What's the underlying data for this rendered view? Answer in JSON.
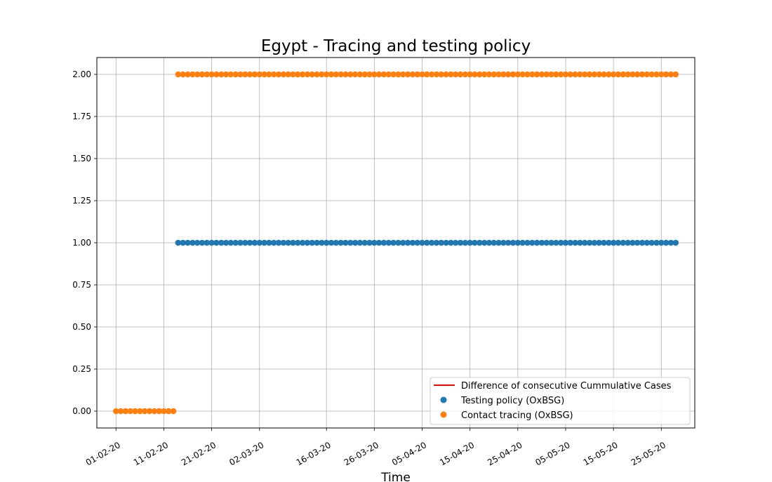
{
  "chart_data": {
    "type": "scatter",
    "title": "Egypt - Tracing and testing policy",
    "xlabel": "Time",
    "ylabel": "",
    "x_range": [
      "2020-01-28",
      "2020-06-01"
    ],
    "ylim": [
      -0.1,
      2.1
    ],
    "grid": true,
    "legend_position": "lower-right",
    "x_ticks": [
      "01-02-20",
      "11-02-20",
      "21-02-20",
      "02-03-20",
      "16-03-20",
      "26-03-20",
      "05-04-20",
      "15-04-20",
      "25-04-20",
      "05-05-20",
      "15-05-20",
      "25-05-20"
    ],
    "y_ticks": [
      "0.00",
      "0.25",
      "0.50",
      "0.75",
      "1.00",
      "1.25",
      "1.50",
      "1.75",
      "2.00"
    ],
    "series": [
      {
        "name": "Difference of consecutive Cummulative Cases",
        "kind": "line",
        "color": "#ff0000",
        "points": []
      },
      {
        "name": "Testing policy (OxBSG)",
        "kind": "scatter",
        "color": "#1f77b4",
        "segments": [
          {
            "from": "2020-02-14",
            "to": "2020-05-28",
            "value": 1
          }
        ]
      },
      {
        "name": "Contact tracing (OxBSG)",
        "kind": "scatter",
        "color": "#ff7f0e",
        "segments": [
          {
            "from": "2020-02-01",
            "to": "2020-02-13",
            "value": 0
          },
          {
            "from": "2020-02-14",
            "to": "2020-05-28",
            "value": 2
          }
        ]
      }
    ]
  }
}
